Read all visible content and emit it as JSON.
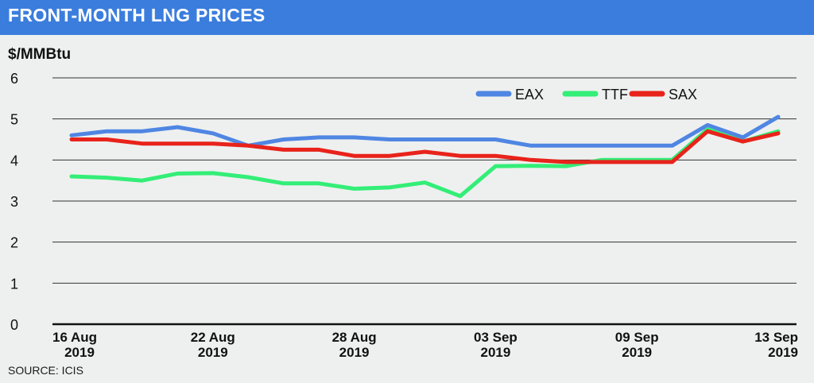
{
  "header": {
    "title": "FRONT-MONTH LNG PRICES"
  },
  "source": "SOURCE: ICIS",
  "colors": {
    "header_bg": "#3b7ddd",
    "EAX": "#4f86e3",
    "TTF": "#33ee77",
    "SAX": "#e8231b"
  },
  "chart_data": {
    "type": "line",
    "title": "FRONT-MONTH LNG PRICES",
    "ylabel": "$/MMBtu",
    "xlabel": "",
    "ylim": [
      0,
      6
    ],
    "yticks": [
      "0",
      "1",
      "2",
      "3",
      "4",
      "5",
      "6"
    ],
    "grid": true,
    "legend_position": "top-right",
    "x": [
      "16 Aug 2019",
      "19 Aug 2019",
      "20 Aug 2019",
      "21 Aug 2019",
      "22 Aug 2019",
      "23 Aug 2019",
      "26 Aug 2019",
      "27 Aug 2019",
      "28 Aug 2019",
      "29 Aug 2019",
      "30 Aug 2019",
      "02 Sep 2019",
      "03 Sep 2019",
      "04 Sep 2019",
      "05 Sep 2019",
      "06 Sep 2019",
      "09 Sep 2019",
      "10 Sep 2019",
      "11 Sep 2019",
      "12 Sep 2019",
      "13 Sep 2019"
    ],
    "x_tick_labels": [
      {
        "index": 0,
        "line1": "16 Aug",
        "line2": "2019"
      },
      {
        "index": 4,
        "line1": "22 Aug",
        "line2": "2019"
      },
      {
        "index": 8,
        "line1": "28 Aug",
        "line2": "2019"
      },
      {
        "index": 12,
        "line1": "03 Sep",
        "line2": "2019"
      },
      {
        "index": 16,
        "line1": "09 Sep",
        "line2": "2019"
      },
      {
        "index": 20,
        "line1": "13 Sep",
        "line2": "2019"
      }
    ],
    "series": [
      {
        "name": "EAX",
        "values": [
          4.6,
          4.7,
          4.7,
          4.8,
          4.65,
          4.35,
          4.5,
          4.55,
          4.55,
          4.5,
          4.5,
          4.5,
          4.5,
          4.35,
          4.35,
          4.35,
          4.35,
          4.35,
          4.85,
          4.55,
          5.05
        ]
      },
      {
        "name": "TTF",
        "values": [
          3.6,
          3.57,
          3.5,
          3.67,
          3.68,
          3.58,
          3.43,
          3.43,
          3.3,
          3.33,
          3.45,
          3.12,
          3.85,
          3.86,
          3.85,
          4.0,
          4.0,
          4.0,
          4.75,
          4.45,
          4.7
        ]
      },
      {
        "name": "SAX",
        "values": [
          4.5,
          4.5,
          4.4,
          4.4,
          4.4,
          4.35,
          4.25,
          4.25,
          4.1,
          4.1,
          4.2,
          4.1,
          4.1,
          4.0,
          3.95,
          3.95,
          3.95,
          3.95,
          4.7,
          4.45,
          4.65
        ]
      }
    ]
  }
}
